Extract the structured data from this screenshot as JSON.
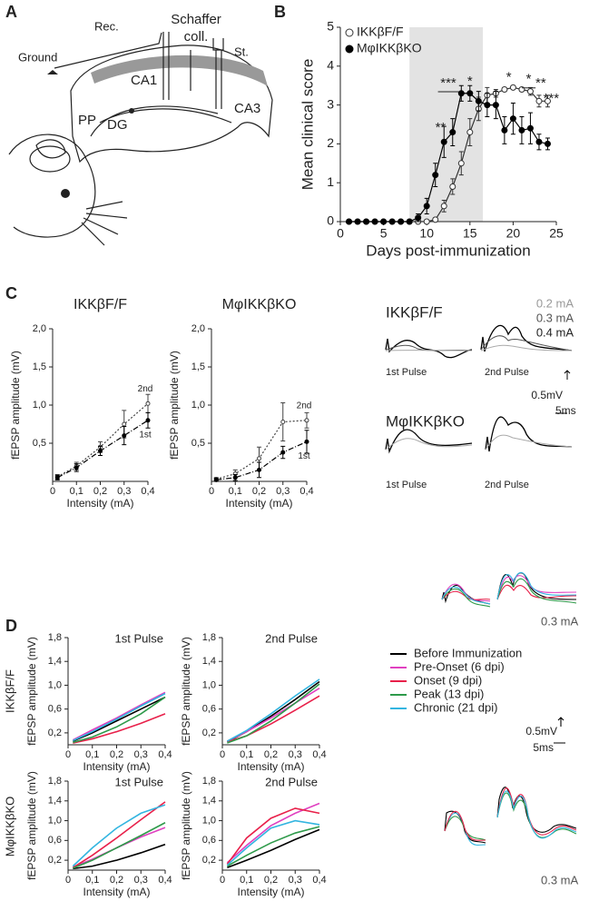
{
  "panel_labels": [
    "A",
    "B",
    "C",
    "D"
  ],
  "diagram": {
    "rec": "Rec.",
    "schaffer": [
      "Schaffer",
      "coll."
    ],
    "stim": "St.",
    "ground": "Ground",
    "ca1": "CA1",
    "ca3": "CA3",
    "dg": "DG",
    "pp": "PP"
  },
  "traces": {
    "c_top": "IKKβF/F",
    "c_bottom": "MφIKKβKO",
    "c_intensities": [
      "0.2 mA",
      "0.3 mA",
      "0.4 mA"
    ],
    "pulses": [
      "1st Pulse",
      "2nd Pulse"
    ],
    "scale_v": "0.5mV",
    "scale_t": "5ms",
    "d_top": "0.3 mA",
    "d_bottom": "0.3 mA",
    "d_scale_v": "0.5mV",
    "d_scale_t": "5ms"
  },
  "row_labels": [
    "IKKβF/F",
    "MφIKKβKO"
  ],
  "chart_data": [
    {
      "type": "line",
      "xlabel": "Days post-immunization",
      "ylabel": "Mean clinical score",
      "xlim": [
        0,
        25
      ],
      "ylim": [
        0,
        5
      ],
      "xticks": [
        0,
        5,
        10,
        15,
        20,
        25
      ],
      "yticks": [
        0,
        1,
        2,
        3,
        4,
        5
      ],
      "shade": [
        8,
        16.5
      ],
      "legend": "upper left",
      "x": [
        1,
        2,
        3,
        4,
        5,
        6,
        7,
        8,
        9,
        10,
        11,
        12,
        13,
        14,
        15,
        16,
        17,
        18,
        19,
        20,
        21,
        22,
        23,
        24
      ],
      "series": [
        {
          "name": "IKKβF/F",
          "color": "#333333",
          "marker": "open",
          "values": [
            0,
            0,
            0,
            0,
            0,
            0,
            0,
            0,
            0,
            0,
            0.05,
            0.4,
            0.9,
            1.5,
            2.3,
            2.9,
            3.25,
            3.3,
            3.4,
            3.45,
            3.4,
            3.35,
            3.1,
            3.1
          ],
          "errors": [
            0,
            0,
            0,
            0,
            0,
            0,
            0,
            0,
            0,
            0,
            0.05,
            0.15,
            0.2,
            0.3,
            0.35,
            0.3,
            0.2,
            0.1,
            0.05,
            0.05,
            0.05,
            0.1,
            0.15,
            0.15
          ]
        },
        {
          "name": "MφIKKβKO",
          "color": "#000000",
          "marker": "filled",
          "values": [
            0,
            0,
            0,
            0,
            0,
            0,
            0,
            0,
            0.1,
            0.4,
            1.2,
            2.05,
            2.3,
            3.3,
            3.3,
            3.1,
            3.0,
            3.0,
            2.35,
            2.65,
            2.35,
            2.4,
            2.05,
            2.0
          ],
          "errors": [
            0,
            0,
            0,
            0,
            0,
            0,
            0,
            0,
            0.1,
            0.2,
            0.3,
            0.4,
            0.35,
            0.2,
            0.2,
            0.25,
            0.3,
            0.35,
            0.35,
            0.4,
            0.35,
            0.4,
            0.2,
            0.15
          ]
        }
      ],
      "annotations": [
        {
          "text": "**",
          "x": 11.6,
          "y": 2.4
        },
        {
          "text": "***",
          "x": 12.5,
          "y": 3.55,
          "span": [
            11.3,
            13.7
          ]
        },
        {
          "text": "*",
          "x": 15,
          "y": 3.6
        },
        {
          "text": "*",
          "x": 19.5,
          "y": 3.7
        },
        {
          "text": "*",
          "x": 21.8,
          "y": 3.65,
          "span": [
            21,
            22.6
          ]
        },
        {
          "text": "**",
          "x": 23.2,
          "y": 3.55
        },
        {
          "text": "***",
          "x": 24.4,
          "y": 3.15
        }
      ]
    },
    {
      "type": "line",
      "title": "IKKβF/F",
      "xlabel": "Intensity (mA)",
      "ylabel": "fEPSP amplitude (mV)",
      "xlim": [
        0,
        0.4
      ],
      "ylim": [
        0,
        2
      ],
      "xticks": [
        0,
        {
          "value": 0.1,
          "label": "0,1"
        },
        {
          "value": 0.2,
          "label": "0,2"
        },
        {
          "value": 0.3,
          "label": "0,3"
        },
        {
          "value": 0.4,
          "label": "0,4"
        }
      ],
      "yticks": [
        {
          "value": 0.5,
          "label": "0,5"
        },
        {
          "value": 1,
          "label": "1,0"
        },
        {
          "value": 1.5,
          "label": "1,5"
        },
        {
          "value": 2,
          "label": "2,0"
        }
      ],
      "x": [
        0.02,
        0.1,
        0.2,
        0.3,
        0.4
      ],
      "series_labels": true,
      "series": [
        {
          "name": "2nd",
          "color": "#444444",
          "dash": "dotted",
          "marker": "open",
          "values": [
            0.06,
            0.2,
            0.45,
            0.75,
            1.02
          ],
          "errors": [
            0.03,
            0.05,
            0.07,
            0.18,
            0.12
          ]
        },
        {
          "name": "1st",
          "color": "#000000",
          "dash": "dashdot",
          "marker": "filled",
          "values": [
            0.05,
            0.18,
            0.4,
            0.6,
            0.8
          ],
          "errors": [
            0.03,
            0.05,
            0.06,
            0.12,
            0.1
          ]
        }
      ]
    },
    {
      "type": "line",
      "title": "MφIKKβKO",
      "xlabel": "Intensity (mA)",
      "ylabel": "fEPSP amplitude (mV)",
      "xlim": [
        0,
        0.4
      ],
      "ylim": [
        0,
        2
      ],
      "xticks": [
        0,
        {
          "value": 0.1,
          "label": "0,1"
        },
        {
          "value": 0.2,
          "label": "0,2"
        },
        {
          "value": 0.3,
          "label": "0,3"
        },
        {
          "value": 0.4,
          "label": "0,4"
        }
      ],
      "yticks": [
        {
          "value": 0.5,
          "label": "0,5"
        },
        {
          "value": 1,
          "label": "1,0"
        },
        {
          "value": 1.5,
          "label": "1,5"
        },
        {
          "value": 2,
          "label": "2,0"
        }
      ],
      "x": [
        0.02,
        0.1,
        0.2,
        0.3,
        0.4
      ],
      "series_labels": true,
      "series": [
        {
          "name": "2nd",
          "color": "#444444",
          "dash": "dotted",
          "marker": "open",
          "values": [
            0.03,
            0.1,
            0.3,
            0.78,
            0.8
          ],
          "errors": [
            0.02,
            0.05,
            0.15,
            0.25,
            0.1
          ]
        },
        {
          "name": "1st",
          "color": "#000000",
          "dash": "dashdot",
          "marker": "filled",
          "values": [
            0.02,
            0.05,
            0.15,
            0.38,
            0.52
          ],
          "errors": [
            0.02,
            0.04,
            0.1,
            0.08,
            0.15
          ]
        }
      ]
    },
    {
      "type": "line",
      "title": "1st Pulse",
      "xlabel": "Intensity (mA)",
      "ylabel": "fEPSP amplitude (mV)",
      "xlim": [
        0,
        0.4
      ],
      "ylim": [
        0,
        1.8
      ],
      "xticks": [
        0,
        {
          "value": 0.1,
          "label": "0,1"
        },
        {
          "value": 0.2,
          "label": "0,2"
        },
        {
          "value": 0.3,
          "label": "0,3"
        },
        {
          "value": 0.4,
          "label": "0,4"
        }
      ],
      "yticks": [
        {
          "value": 0.2,
          "label": "0,2"
        },
        {
          "value": 0.6,
          "label": "0,6"
        },
        {
          "value": 1,
          "label": "1,0"
        },
        {
          "value": 1.4,
          "label": "1,4"
        },
        {
          "value": 1.8,
          "label": "1,8"
        }
      ],
      "x": [
        0.02,
        0.1,
        0.2,
        0.3,
        0.4
      ],
      "legend": "outside right",
      "series": [
        {
          "name": "Before Immunization",
          "color": "#000000",
          "values": [
            0.06,
            0.2,
            0.4,
            0.6,
            0.8
          ]
        },
        {
          "name": "Pre-Onset (6 dpi)",
          "color": "#e040c0",
          "values": [
            0.08,
            0.25,
            0.45,
            0.67,
            0.88
          ]
        },
        {
          "name": "Onset (9 dpi)",
          "color": "#e8204a",
          "values": [
            0.03,
            0.1,
            0.22,
            0.36,
            0.52
          ]
        },
        {
          "name": "Peak (13 dpi)",
          "color": "#2e9a4a",
          "values": [
            0.04,
            0.13,
            0.3,
            0.52,
            0.8
          ]
        },
        {
          "name": "Chronic (21 dpi)",
          "color": "#33b5e0",
          "values": [
            0.07,
            0.22,
            0.43,
            0.65,
            0.86
          ]
        }
      ]
    },
    {
      "type": "line",
      "title": "2nd Pulse",
      "xlabel": "Intensity (mA)",
      "ylabel": "fEPSP amplitude (mV)",
      "xlim": [
        0,
        0.4
      ],
      "ylim": [
        0,
        1.8
      ],
      "xticks": [
        0,
        {
          "value": 0.1,
          "label": "0,1"
        },
        {
          "value": 0.2,
          "label": "0,2"
        },
        {
          "value": 0.3,
          "label": "0,3"
        },
        {
          "value": 0.4,
          "label": "0,4"
        }
      ],
      "yticks": [
        {
          "value": 0.2,
          "label": "0,2"
        },
        {
          "value": 0.6,
          "label": "0,6"
        },
        {
          "value": 1,
          "label": "1,0"
        },
        {
          "value": 1.4,
          "label": "1,4"
        },
        {
          "value": 1.8,
          "label": "1,8"
        }
      ],
      "x": [
        0.02,
        0.1,
        0.2,
        0.3,
        0.4
      ],
      "series": [
        {
          "color": "#000000",
          "values": [
            0.05,
            0.22,
            0.48,
            0.76,
            1.06
          ]
        },
        {
          "color": "#e040c0",
          "values": [
            0.06,
            0.22,
            0.45,
            0.7,
            0.95
          ]
        },
        {
          "color": "#e8204a",
          "values": [
            0.05,
            0.15,
            0.35,
            0.58,
            0.82
          ]
        },
        {
          "color": "#2e9a4a",
          "values": [
            0.03,
            0.15,
            0.4,
            0.7,
            1.02
          ]
        },
        {
          "color": "#33b5e0",
          "values": [
            0.06,
            0.24,
            0.52,
            0.82,
            1.1
          ]
        }
      ]
    },
    {
      "type": "line",
      "title": "1st Pulse",
      "xlabel": "Intensity (mA)",
      "ylabel": "fEPSP amplitude (mV)",
      "xlim": [
        0,
        0.4
      ],
      "ylim": [
        0,
        1.8
      ],
      "xticks": [
        0,
        {
          "value": 0.1,
          "label": "0,1"
        },
        {
          "value": 0.2,
          "label": "0,2"
        },
        {
          "value": 0.3,
          "label": "0,3"
        },
        {
          "value": 0.4,
          "label": "0,4"
        }
      ],
      "yticks": [
        {
          "value": 0.2,
          "label": "0,2"
        },
        {
          "value": 0.6,
          "label": "0,6"
        },
        {
          "value": 1,
          "label": "1,0"
        },
        {
          "value": 1.4,
          "label": "1,4"
        },
        {
          "value": 1.8,
          "label": "1,8"
        }
      ],
      "x": [
        0.02,
        0.1,
        0.2,
        0.3,
        0.4
      ],
      "series": [
        {
          "color": "#000000",
          "values": [
            0.03,
            0.08,
            0.2,
            0.35,
            0.52
          ]
        },
        {
          "color": "#e040c0",
          "values": [
            0.06,
            0.22,
            0.45,
            0.67,
            0.86
          ]
        },
        {
          "color": "#e8204a",
          "values": [
            0.05,
            0.3,
            0.65,
            1.02,
            1.38
          ]
        },
        {
          "color": "#2e9a4a",
          "values": [
            0.04,
            0.2,
            0.45,
            0.7,
            0.96
          ]
        },
        {
          "color": "#33b5e0",
          "values": [
            0.08,
            0.45,
            0.85,
            1.15,
            1.32
          ]
        }
      ]
    },
    {
      "type": "line",
      "title": "2nd Pulse",
      "xlabel": "Intensity (mA)",
      "ylabel": "fEPSP amplitude (mV)",
      "xlim": [
        0,
        0.4
      ],
      "ylim": [
        0,
        1.8
      ],
      "xticks": [
        0,
        {
          "value": 0.1,
          "label": "0,1"
        },
        {
          "value": 0.2,
          "label": "0,2"
        },
        {
          "value": 0.3,
          "label": "0,3"
        },
        {
          "value": 0.4,
          "label": "0,4"
        }
      ],
      "yticks": [
        {
          "value": 0.2,
          "label": "0,2"
        },
        {
          "value": 0.6,
          "label": "0,6"
        },
        {
          "value": 1,
          "label": "1,0"
        },
        {
          "value": 1.4,
          "label": "1,4"
        },
        {
          "value": 1.8,
          "label": "1,8"
        }
      ],
      "x": [
        0.02,
        0.1,
        0.2,
        0.3,
        0.4
      ],
      "series": [
        {
          "color": "#000000",
          "values": [
            0.05,
            0.2,
            0.4,
            0.62,
            0.82
          ]
        },
        {
          "color": "#e040c0",
          "values": [
            0.15,
            0.5,
            0.9,
            1.15,
            1.35
          ]
        },
        {
          "color": "#e8204a",
          "values": [
            0.12,
            0.65,
            1.05,
            1.25,
            1.15
          ]
        },
        {
          "color": "#2e9a4a",
          "values": [
            0.08,
            0.3,
            0.55,
            0.75,
            0.88
          ]
        },
        {
          "color": "#33b5e0",
          "values": [
            0.1,
            0.45,
            0.85,
            1.0,
            0.92
          ]
        }
      ]
    }
  ]
}
